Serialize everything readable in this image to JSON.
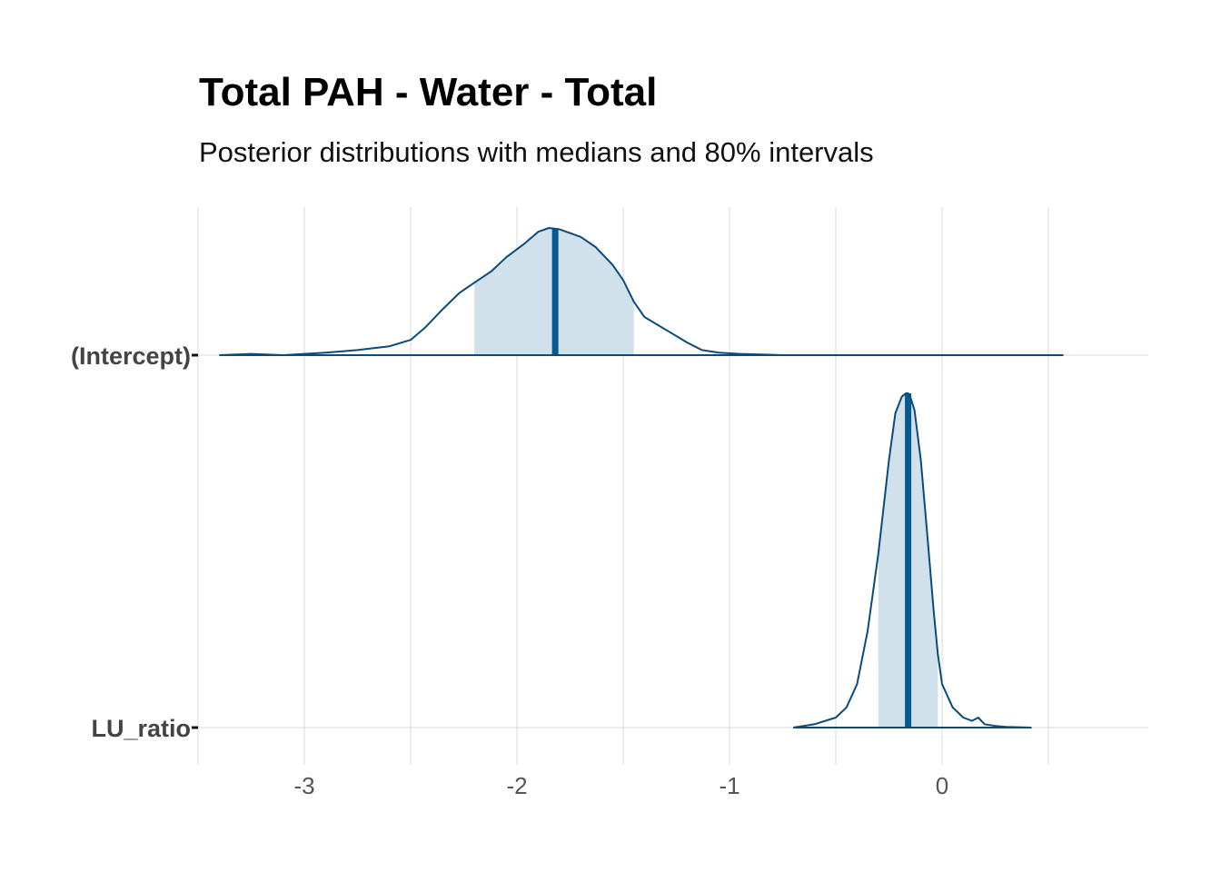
{
  "title": "Total PAH - Water - Total",
  "subtitle": "Posterior distributions with medians and 80% intervals",
  "chart_data": {
    "type": "area",
    "subtype": "ridgeline density (posterior areas)",
    "title": "Total PAH - Water - Total",
    "subtitle": "Posterior distributions with medians and 80% intervals",
    "xlabel": "",
    "ylabel": "",
    "xlim": [
      -3.5,
      0.97
    ],
    "x_ticks": [
      -3,
      -2,
      -1,
      0
    ],
    "x_tick_labels": [
      "-3",
      "-2",
      "-1",
      "0"
    ],
    "grid": true,
    "legend": "none",
    "colors": {
      "line": "#0b4a7a",
      "fill": "#d1e1ec",
      "median": "#065a8f",
      "grid": "#d9d9d9"
    },
    "series": [
      {
        "name": "(Intercept)",
        "median": -1.82,
        "interval_80": [
          -2.2,
          -1.45
        ],
        "range": [
          -3.4,
          0.57
        ],
        "density_x": [
          -3.4,
          -3.25,
          -3.1,
          -2.9,
          -2.75,
          -2.6,
          -2.5,
          -2.43,
          -2.35,
          -2.27,
          -2.2,
          -2.12,
          -2.05,
          -1.97,
          -1.9,
          -1.85,
          -1.8,
          -1.75,
          -1.7,
          -1.63,
          -1.55,
          -1.5,
          -1.45,
          -1.4,
          -1.34,
          -1.27,
          -1.2,
          -1.13,
          -1.05,
          -0.95,
          -0.85,
          -0.75,
          -0.6,
          -0.4,
          0.0,
          0.57
        ],
        "density_y": [
          0.0,
          0.01,
          0.0,
          0.02,
          0.04,
          0.07,
          0.12,
          0.22,
          0.36,
          0.49,
          0.57,
          0.66,
          0.77,
          0.87,
          0.97,
          1.0,
          0.99,
          0.96,
          0.93,
          0.85,
          0.71,
          0.59,
          0.42,
          0.3,
          0.24,
          0.17,
          0.1,
          0.04,
          0.02,
          0.01,
          0.005,
          0.0,
          0.0,
          0.0,
          0.0,
          0.0
        ]
      },
      {
        "name": "LU_ratio",
        "median": -0.16,
        "interval_80": [
          -0.3,
          -0.02
        ],
        "range": [
          -0.7,
          0.42
        ],
        "density_x": [
          -0.7,
          -0.6,
          -0.5,
          -0.45,
          -0.4,
          -0.35,
          -0.3,
          -0.25,
          -0.22,
          -0.19,
          -0.17,
          -0.16,
          -0.15,
          -0.13,
          -0.1,
          -0.07,
          -0.04,
          -0.02,
          0.0,
          0.05,
          0.1,
          0.14,
          0.17,
          0.2,
          0.25,
          0.3,
          0.42
        ],
        "density_y": [
          0.0,
          0.01,
          0.03,
          0.06,
          0.13,
          0.29,
          0.52,
          0.8,
          0.94,
          0.99,
          1.0,
          1.0,
          0.99,
          0.95,
          0.8,
          0.58,
          0.35,
          0.22,
          0.13,
          0.06,
          0.03,
          0.02,
          0.03,
          0.01,
          0.005,
          0.002,
          0.0
        ]
      }
    ]
  }
}
